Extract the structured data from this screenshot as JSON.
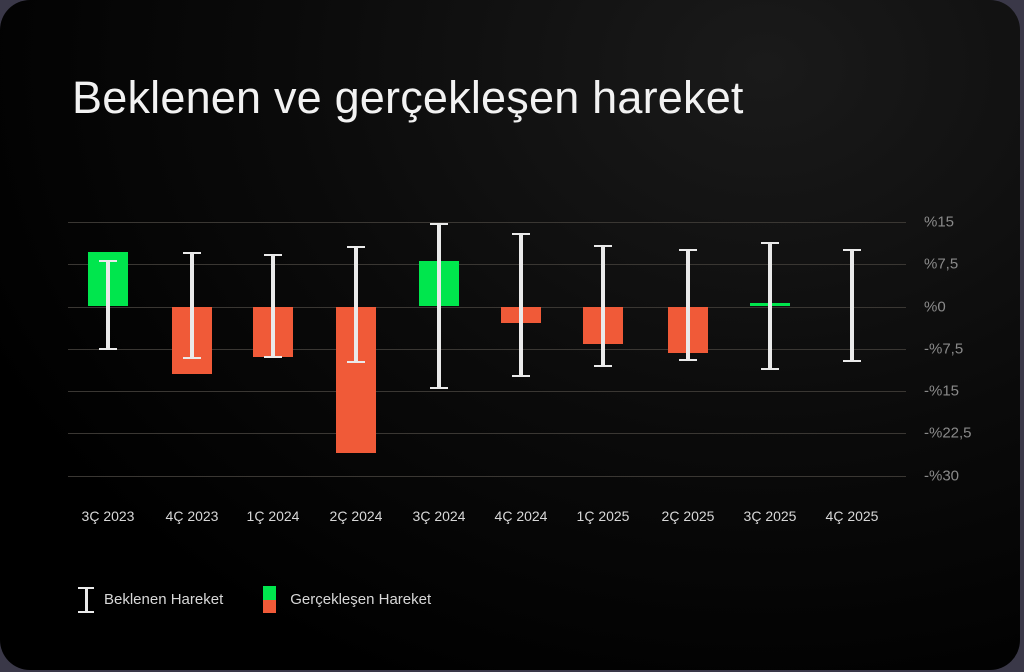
{
  "title": "Beklenen ve gerçekleşen hareket",
  "colors": {
    "positive": "#00e64d",
    "negative": "#f05a38",
    "expected": "#eaeaea",
    "grid": "#3a3733"
  },
  "legend": {
    "expected_label": "Beklenen Hareket",
    "actual_label": "Gerçekleşen Hareket"
  },
  "y_ticks": [
    "%15",
    "%7,5",
    "%0",
    "-%7,5",
    "-%15",
    "-%22,5",
    "-%30"
  ],
  "chart_data": {
    "type": "bar",
    "title": "Beklenen ve gerçekleşen hareket",
    "xlabel": "",
    "ylabel": "",
    "ylim": [
      -30,
      15
    ],
    "y_tick_values": [
      15,
      7.5,
      0,
      -7.5,
      -15,
      -22.5,
      -30
    ],
    "y_tick_labels": [
      "%15",
      "%7,5",
      "%0",
      "-%7,5",
      "-%15",
      "-%22,5",
      "-%30"
    ],
    "grid": true,
    "legend_position": "bottom-left",
    "categories": [
      "3Ç 2023",
      "4Ç 2023",
      "1Ç 2024",
      "2Ç 2024",
      "3Ç 2024",
      "4Ç 2024",
      "1Ç 2025",
      "2Ç 2025",
      "3Ç 2025",
      "4Ç 2025"
    ],
    "series": [
      {
        "name": "Gerçekleşen Hareket",
        "type": "bar",
        "values": [
          9.6,
          -11.9,
          -8.9,
          -25.9,
          8.0,
          -2.9,
          -6.6,
          -8.3,
          0.6,
          null
        ]
      },
      {
        "name": "Beklenen Hareket",
        "type": "errorbar",
        "upper": [
          8.0,
          9.4,
          9.2,
          10.5,
          14.7,
          12.9,
          10.8,
          10.0,
          11.3,
          10.0
        ],
        "lower": [
          -7.5,
          -9.2,
          -8.9,
          -9.8,
          -14.4,
          -12.4,
          -10.5,
          -9.4,
          -11.0,
          -9.6
        ]
      }
    ]
  }
}
